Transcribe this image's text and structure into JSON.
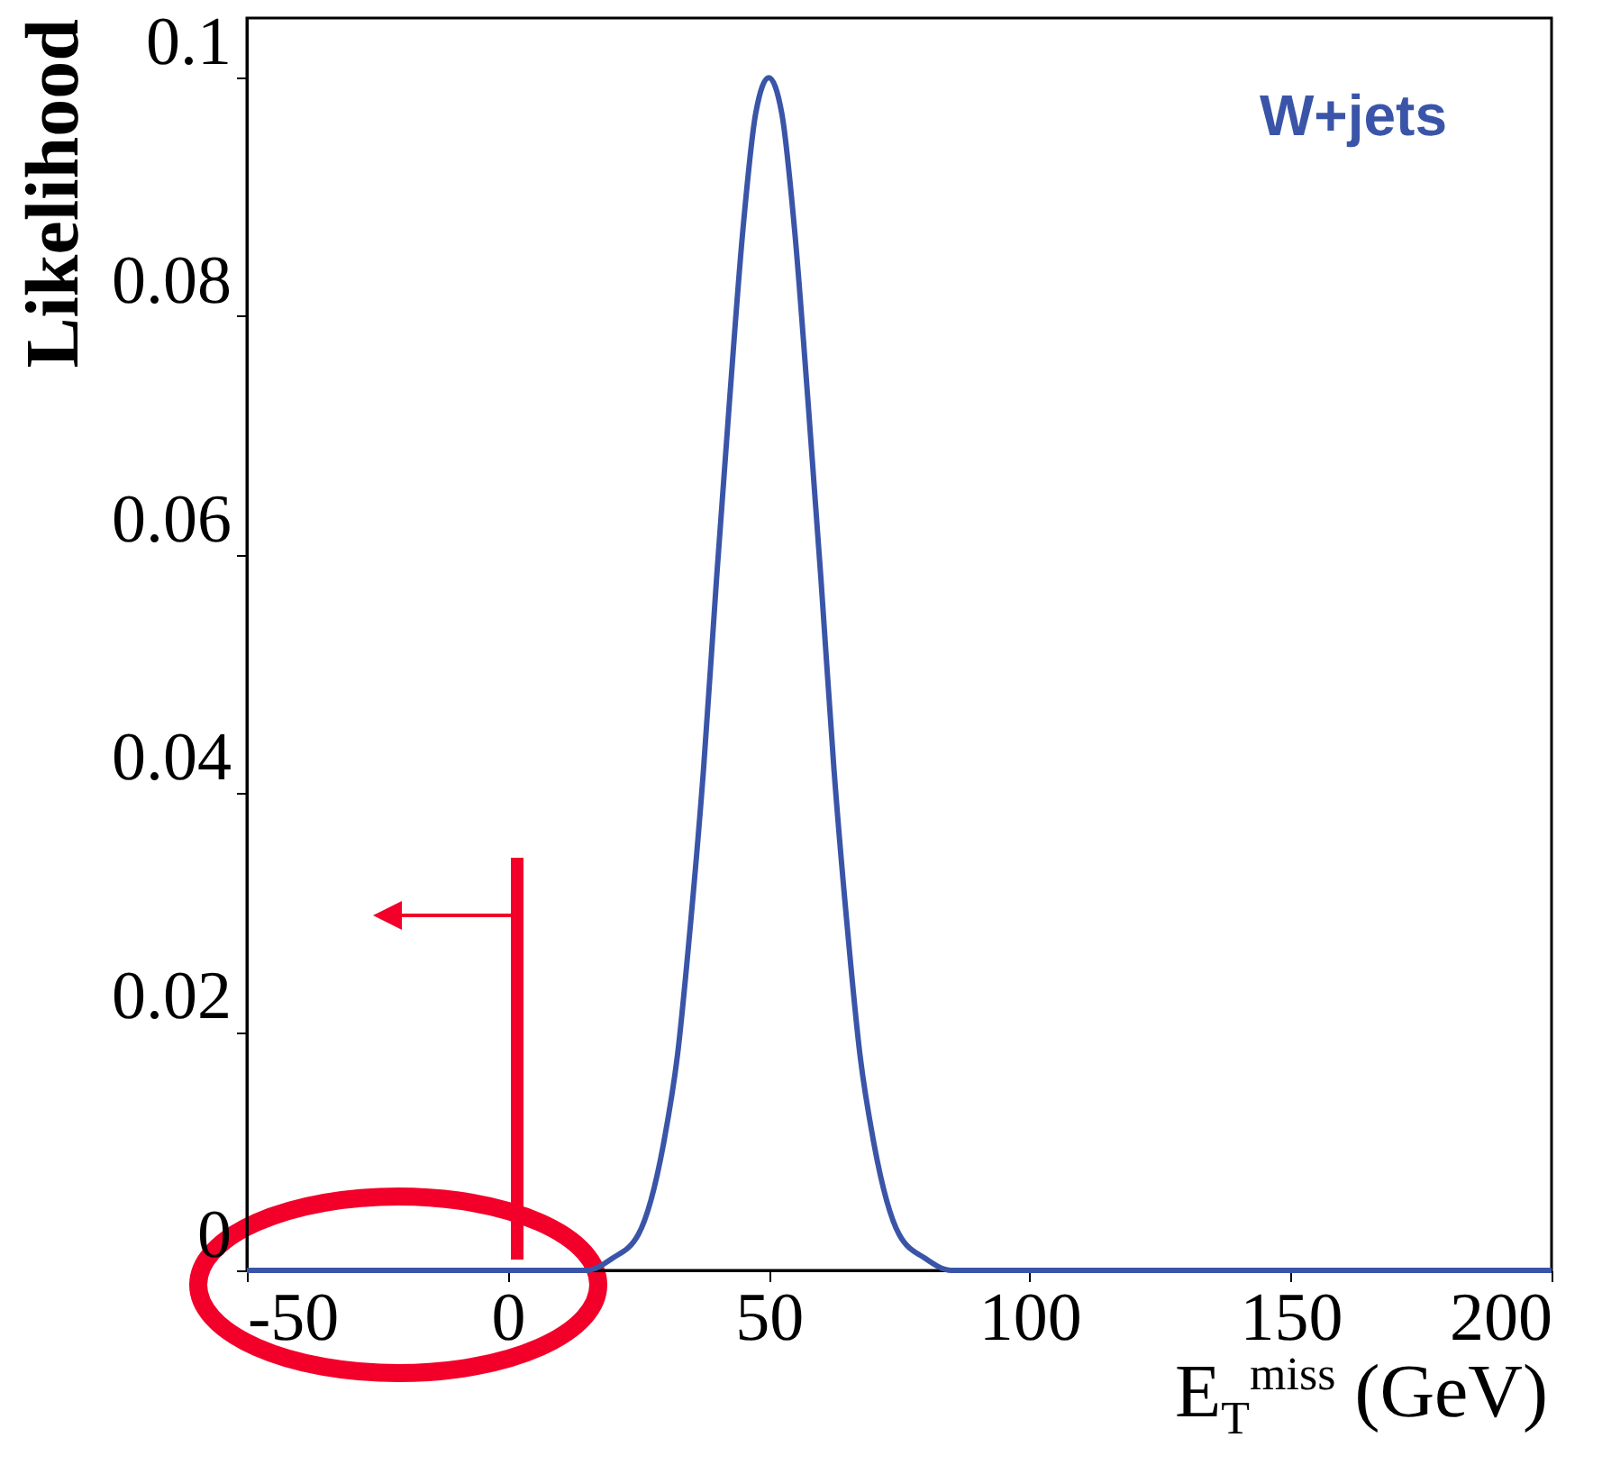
{
  "chart_data": {
    "type": "line",
    "xlabel": "E$_{T}$$^{miss}$ (GeV)",
    "ylabel": "Likelihood",
    "annotations": [
      "W+jets"
    ],
    "series": [
      {
        "color": "#3a55a8",
        "x": [
          -50,
          0,
          10,
          15,
          20,
          25,
          30,
          32.5,
          35,
          37.5,
          40,
          42.5,
          45,
          47.5,
          50,
          52.5,
          55,
          57.5,
          60,
          62.5,
          65,
          67.5,
          70,
          75,
          80,
          85,
          100,
          200
        ],
        "values": [
          0,
          0,
          0,
          0,
          0.001,
          0.003,
          0.011,
          0.018,
          0.029,
          0.042,
          0.058,
          0.073,
          0.087,
          0.097,
          0.1,
          0.097,
          0.087,
          0.073,
          0.058,
          0.042,
          0.029,
          0.018,
          0.011,
          0.003,
          0.001,
          0,
          0,
          0
        ]
      }
    ],
    "xlim": [
      -50,
      200
    ],
    "xticks": [
      -50,
      0,
      50,
      100,
      150,
      200
    ],
    "ylim": [
      0,
      0.105
    ],
    "yticks": [
      0,
      0.02,
      0.04,
      0.06,
      0.08,
      0.1
    ],
    "grid": false
  }
}
